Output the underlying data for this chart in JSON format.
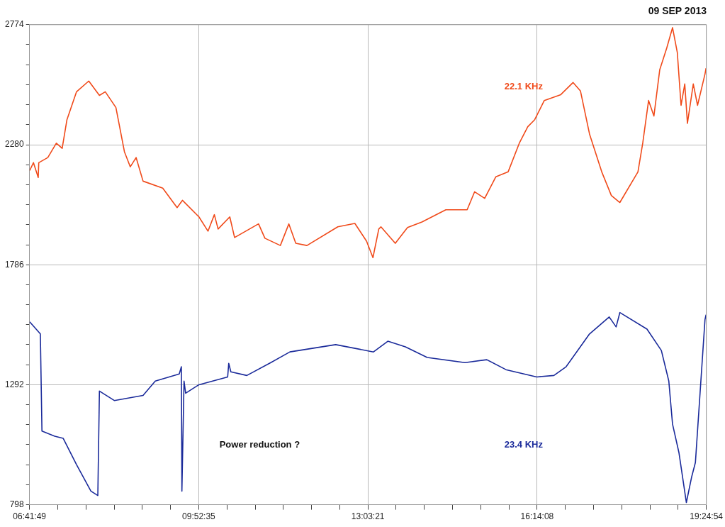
{
  "chart_data": {
    "type": "line",
    "title": "09 SEP 2013",
    "annotations": [
      "Power reduction ?"
    ],
    "grid": true,
    "legend": false,
    "marker": "none",
    "line_style": "solid",
    "xlim": [
      6.69694,
      19.415
    ],
    "xticks": [
      {
        "value": 6.69694,
        "label": "06:41:49"
      },
      {
        "value": 7.2269,
        "label": null
      },
      {
        "value": 7.7568,
        "label": null
      },
      {
        "value": 8.2867,
        "label": null
      },
      {
        "value": 8.8166,
        "label": null
      },
      {
        "value": 9.3465,
        "label": null
      },
      {
        "value": 9.87639,
        "label": "09:52:35"
      },
      {
        "value": 10.4063,
        "label": null
      },
      {
        "value": 10.9363,
        "label": null
      },
      {
        "value": 11.4662,
        "label": null
      },
      {
        "value": 11.9961,
        "label": null
      },
      {
        "value": 12.526,
        "label": null
      },
      {
        "value": 13.05583,
        "label": "13:03:21"
      },
      {
        "value": 13.5858,
        "label": null
      },
      {
        "value": 14.1157,
        "label": null
      },
      {
        "value": 14.6456,
        "label": null
      },
      {
        "value": 15.1756,
        "label": null
      },
      {
        "value": 15.7055,
        "label": null
      },
      {
        "value": 16.23556,
        "label": "16:14:08"
      },
      {
        "value": 16.7655,
        "label": null
      },
      {
        "value": 17.2954,
        "label": null
      },
      {
        "value": 17.8253,
        "label": null
      },
      {
        "value": 18.3552,
        "label": null
      },
      {
        "value": 18.8851,
        "label": null
      },
      {
        "value": 19.415,
        "label": "19:24:54"
      }
    ],
    "ylim": [
      798,
      2774
    ],
    "yticks": [
      798,
      {
        "value": 880.3,
        "label": null
      },
      {
        "value": 962.7,
        "label": null
      },
      {
        "value": 1045,
        "label": null
      },
      {
        "value": 1127.3,
        "label": null
      },
      {
        "value": 1209.7,
        "label": null
      },
      1292,
      {
        "value": 1374.3,
        "label": null
      },
      {
        "value": 1456.7,
        "label": null
      },
      {
        "value": 1539,
        "label": null
      },
      {
        "value": 1621.3,
        "label": null
      },
      {
        "value": 1703.7,
        "label": null
      },
      1786,
      {
        "value": 1868.3,
        "label": null
      },
      {
        "value": 1950.7,
        "label": null
      },
      {
        "value": 2033,
        "label": null
      },
      {
        "value": 2115.3,
        "label": null
      },
      {
        "value": 2197.7,
        "label": null
      },
      2280,
      {
        "value": 2362.3,
        "label": null
      },
      {
        "value": 2444.7,
        "label": null
      },
      {
        "value": 2527,
        "label": null
      },
      {
        "value": 2609.3,
        "label": null
      },
      {
        "value": 2691.7,
        "label": null
      },
      2774
    ],
    "series": [
      {
        "name": "22.1 KHz",
        "color": "#f04a1a",
        "x": [
          6.7,
          6.77,
          6.86,
          6.87,
          7.04,
          7.2,
          7.31,
          7.4,
          7.58,
          7.81,
          8.01,
          8.12,
          8.32,
          8.48,
          8.59,
          8.7,
          8.83,
          9.2,
          9.47,
          9.57,
          9.88,
          10.05,
          10.17,
          10.24,
          10.46,
          10.55,
          11.0,
          11.12,
          11.41,
          11.57,
          11.7,
          11.91,
          12.49,
          12.81,
          13.03,
          13.15,
          13.26,
          13.3,
          13.57,
          13.8,
          14.07,
          14.52,
          14.92,
          15.06,
          15.25,
          15.46,
          15.69,
          15.9,
          16.06,
          16.19,
          16.37,
          16.68,
          16.91,
          17.05,
          17.22,
          17.45,
          17.63,
          17.79,
          18.13,
          18.22,
          18.33,
          18.43,
          18.54,
          18.67,
          18.78,
          18.87,
          18.94,
          19.01,
          19.06,
          19.17,
          19.25,
          19.39,
          19.41
        ],
        "values": [
          2174,
          2206,
          2145,
          2206,
          2227,
          2286,
          2265,
          2383,
          2498,
          2542,
          2483,
          2498,
          2433,
          2251,
          2189,
          2227,
          2130,
          2101,
          2021,
          2051,
          1983,
          1924,
          1992,
          1933,
          1983,
          1898,
          1954,
          1895,
          1865,
          1954,
          1874,
          1865,
          1942,
          1956,
          1883,
          1815,
          1933,
          1942,
          1874,
          1939,
          1962,
          2012,
          2012,
          2086,
          2059,
          2148,
          2168,
          2286,
          2354,
          2383,
          2462,
          2486,
          2536,
          2501,
          2324,
          2168,
          2071,
          2042,
          2168,
          2286,
          2462,
          2398,
          2589,
          2677,
          2762,
          2659,
          2442,
          2530,
          2368,
          2530,
          2442,
          2571,
          2595
        ]
      },
      {
        "name": "23.4 KHz",
        "color": "#1a2a9a",
        "x": [
          6.7,
          6.9,
          6.93,
          7.17,
          7.33,
          7.58,
          7.85,
          7.98,
          8.01,
          8.29,
          8.83,
          9.06,
          9.51,
          9.55,
          9.56,
          9.6,
          9.63,
          9.88,
          10.42,
          10.44,
          10.48,
          10.78,
          11.23,
          11.59,
          12.45,
          13.16,
          13.43,
          13.76,
          14.17,
          14.88,
          15.29,
          15.65,
          16.23,
          16.55,
          16.78,
          17.22,
          17.59,
          17.72,
          17.79,
          18.3,
          18.57,
          18.71,
          18.78,
          18.9,
          19.04,
          19.14,
          19.21,
          19.39,
          19.41
        ],
        "values": [
          1551,
          1501,
          1101,
          1080,
          1071,
          963,
          854,
          836,
          1266,
          1227,
          1248,
          1307,
          1336,
          1366,
          854,
          1307,
          1257,
          1292,
          1324,
          1380,
          1345,
          1330,
          1383,
          1427,
          1457,
          1427,
          1471,
          1448,
          1404,
          1383,
          1395,
          1354,
          1324,
          1330,
          1366,
          1501,
          1571,
          1530,
          1589,
          1521,
          1433,
          1307,
          1130,
          1013,
          807,
          913,
          972,
          1560,
          1580
        ]
      }
    ]
  }
}
